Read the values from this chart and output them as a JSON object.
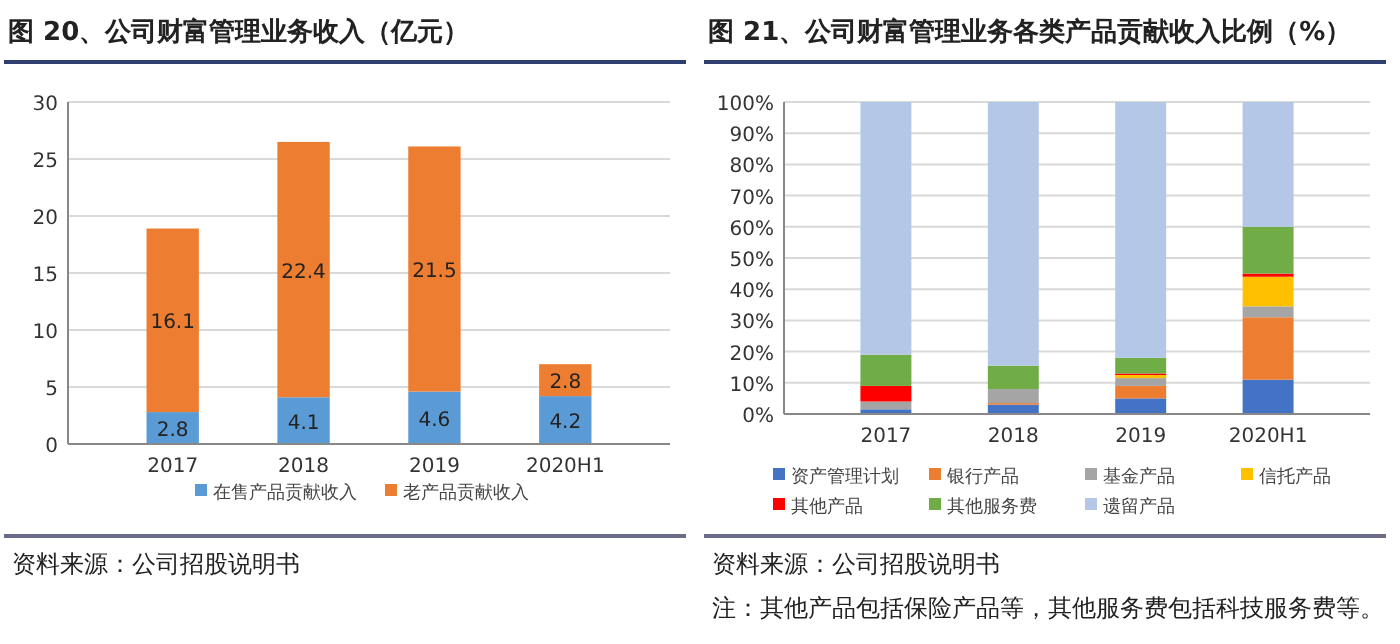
{
  "chart_data": [
    {
      "type": "bar",
      "title": "图 20、公司财富管理业务收入（亿元）",
      "categories": [
        "2017",
        "2018",
        "2019",
        "2020H1"
      ],
      "stacked": true,
      "series": [
        {
          "name": "在售产品贡献收入",
          "color": "#5b9bd5",
          "values": [
            2.8,
            4.1,
            4.6,
            4.2
          ]
        },
        {
          "name": "老产品贡献收入",
          "color": "#ed7d31",
          "values": [
            16.1,
            22.4,
            21.5,
            2.8
          ]
        }
      ],
      "ylim": [
        0,
        30
      ],
      "yticks": [
        0,
        5,
        10,
        15,
        20,
        25,
        30
      ],
      "grid": "y",
      "legend": "bottom",
      "data_labels": true,
      "annotations": [
        "资料来源：公司招股说明书"
      ]
    },
    {
      "type": "bar",
      "title": "图 21、公司财富管理业务各类产品贡献收入比例（%）",
      "categories": [
        "2017",
        "2018",
        "2019",
        "2020H1"
      ],
      "stacked": true,
      "series": [
        {
          "name": "资产管理计划",
          "color": "#4472c4",
          "values": [
            1.5,
            3,
            5,
            11
          ]
        },
        {
          "name": "银行产品",
          "color": "#ed7d31",
          "values": [
            0,
            0.5,
            4,
            20
          ]
        },
        {
          "name": "基金产品",
          "color": "#a5a5a5",
          "values": [
            2.5,
            4.5,
            2.5,
            3.5
          ]
        },
        {
          "name": "信托产品",
          "color": "#ffc000",
          "values": [
            0,
            0,
            1,
            9.5
          ]
        },
        {
          "name": "其他产品",
          "color": "#ff0000",
          "values": [
            5,
            0,
            0.5,
            1
          ]
        },
        {
          "name": "其他服务费",
          "color": "#70ad47",
          "values": [
            10,
            7.5,
            5,
            15
          ]
        },
        {
          "name": "遗留产品",
          "color": "#b4c7e7",
          "values": [
            81,
            84.5,
            82,
            40
          ]
        }
      ],
      "ylim": [
        0,
        100
      ],
      "yticks": [
        {
          "value": 0,
          "label": "0%"
        },
        {
          "value": 10,
          "label": "10%"
        },
        {
          "value": 20,
          "label": "20%"
        },
        {
          "value": 30,
          "label": "30%"
        },
        {
          "value": 40,
          "label": "40%"
        },
        {
          "value": 50,
          "label": "50%"
        },
        {
          "value": 60,
          "label": "60%"
        },
        {
          "value": 70,
          "label": "70%"
        },
        {
          "value": 80,
          "label": "80%"
        },
        {
          "value": 90,
          "label": "90%"
        },
        {
          "value": 100,
          "label": "100%"
        }
      ],
      "grid": "y",
      "legend": "bottom",
      "annotations": [
        "资料来源：公司招股说明书",
        "注：其他产品包括保险产品等，其他服务费包括科技服务费等。"
      ]
    }
  ]
}
